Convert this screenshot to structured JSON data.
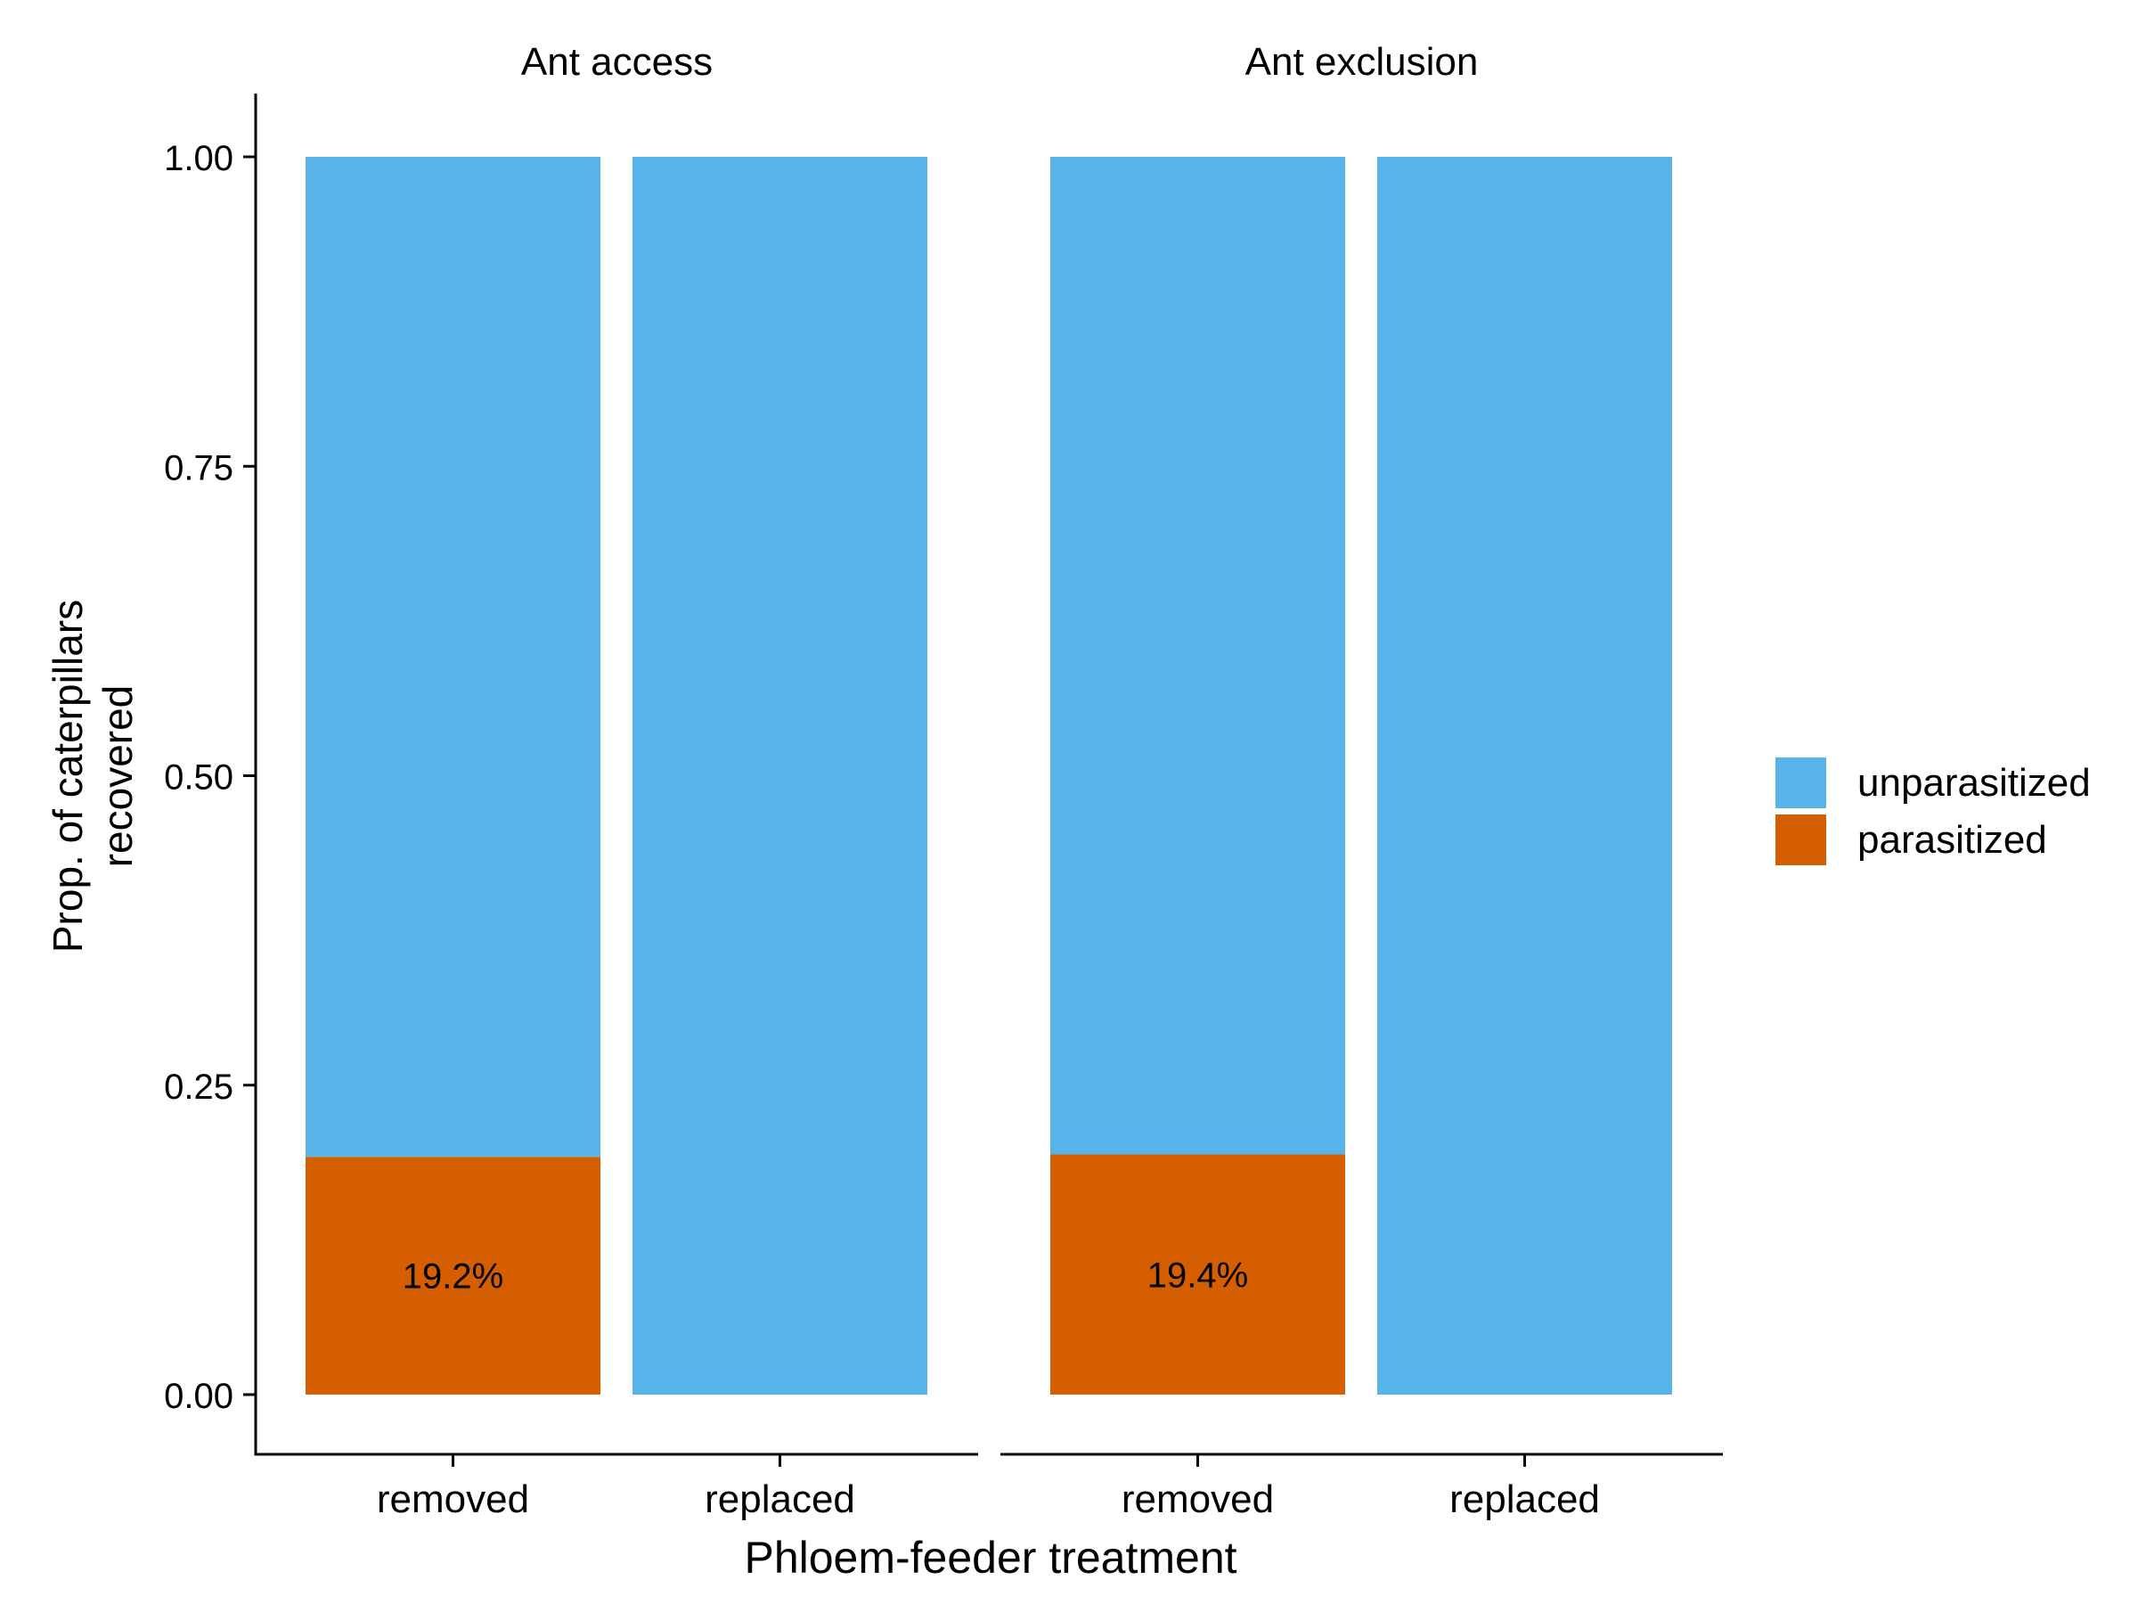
{
  "chart_data": {
    "type": "bar",
    "stacked": true,
    "xlabel": "Phloem-feeder treatment",
    "ylabel_lines": [
      "Prop. of caterpillars",
      "recovered"
    ],
    "ylim": [
      0,
      1
    ],
    "yticks": [
      0.0,
      0.25,
      0.5,
      0.75,
      1.0
    ],
    "ytick_labels": [
      "0.00",
      "0.25",
      "0.50",
      "0.75",
      "1.00"
    ],
    "categories": [
      "removed",
      "replaced"
    ],
    "grid": false,
    "legend_position": "right",
    "legend": [
      {
        "name": "unparasitized",
        "color": "#56B4E9"
      },
      {
        "name": "parasitized",
        "color": "#D55E00"
      }
    ],
    "facets": [
      {
        "title": "Ant access",
        "bars": [
          {
            "category": "removed",
            "parasitized": 0.192,
            "unparasitized": 0.808,
            "label": "19.2%"
          },
          {
            "category": "replaced",
            "parasitized": 0.0,
            "unparasitized": 1.0,
            "label": ""
          }
        ]
      },
      {
        "title": "Ant exclusion",
        "bars": [
          {
            "category": "removed",
            "parasitized": 0.194,
            "unparasitized": 0.806,
            "label": "19.4%"
          },
          {
            "category": "replaced",
            "parasitized": 0.0,
            "unparasitized": 1.0,
            "label": ""
          }
        ]
      }
    ]
  }
}
